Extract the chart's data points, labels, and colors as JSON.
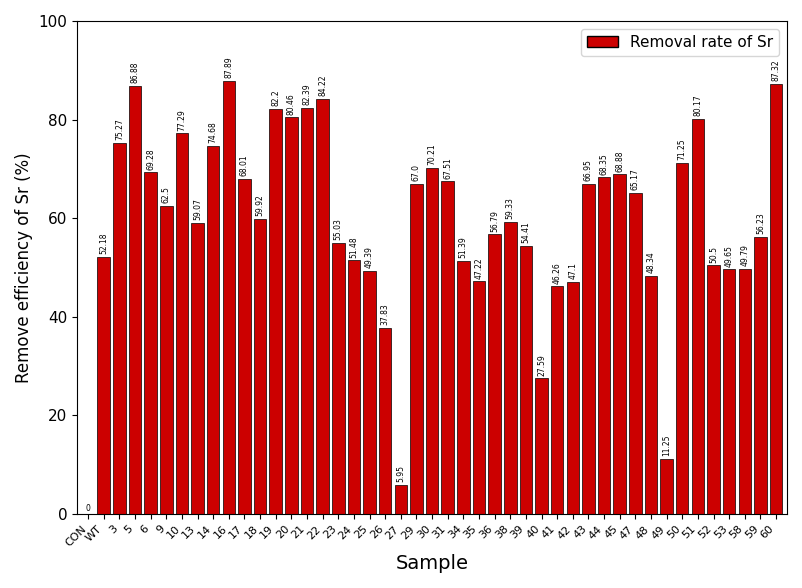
{
  "categories": [
    "CON",
    "WT",
    "3",
    "5",
    "6",
    "9",
    "10",
    "13",
    "14",
    "16",
    "17",
    "18",
    "19",
    "20",
    "21",
    "22",
    "23",
    "24",
    "25",
    "26",
    "27",
    "29",
    "30",
    "31",
    "34",
    "35",
    "36",
    "38",
    "39",
    "40",
    "41",
    "42",
    "43",
    "44",
    "45",
    "47",
    "48",
    "49",
    "50",
    "51",
    "52",
    "53",
    "58",
    "59",
    "60"
  ],
  "values": [
    0,
    52.18,
    75.27,
    86.88,
    69.28,
    62.5,
    77.29,
    59.07,
    74.68,
    87.89,
    68.01,
    59.92,
    82.2,
    80.46,
    82.39,
    84.22,
    55.03,
    51.48,
    49.39,
    37.83,
    5.95,
    67.0,
    70.21,
    67.51,
    51.39,
    47.22,
    56.79,
    59.33,
    54.41,
    27.59,
    46.26,
    47.1,
    66.95,
    68.35,
    68.88,
    65.17,
    48.34,
    11.25,
    71.25,
    80.17,
    50.5,
    49.65,
    49.79,
    56.23,
    87.32
  ],
  "labels": [
    "0",
    "52.18",
    "75.27",
    "86.88",
    "69.28",
    "62.5",
    "77.29",
    "59.07",
    "74.68",
    "87.89",
    "68.01",
    "59.92",
    "82.2",
    "80.46",
    "82.39",
    "84.22",
    "55.03",
    "51.48",
    "49.39",
    "37.83",
    "5.95",
    "67.0",
    "70.21",
    "67.51",
    "51.39",
    "47.22",
    "56.79",
    "59.33",
    "54.41",
    "27.59",
    "46.26",
    "47.1",
    "66.95",
    "68.35",
    "68.88",
    "65.17",
    "48.34",
    "11.25",
    "71.25",
    "80.17",
    "50.5",
    "49.65",
    "49.79",
    "56.23",
    "87.32"
  ],
  "bar_color": "#cc0000",
  "bar_edge_color": "#000000",
  "xlabel": "Sample",
  "ylabel": "Remove efficiency of Sr (%)",
  "ylim": [
    0,
    100
  ],
  "legend_label": "Removal rate of Sr",
  "bar_width": 0.8
}
